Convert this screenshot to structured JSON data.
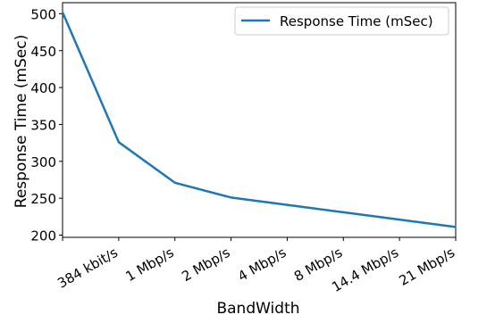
{
  "chart_data": {
    "type": "line",
    "title": "",
    "xlabel": "BandWidth",
    "ylabel": "Response Time (mSec)",
    "categories": [
      "",
      "384 kbit/s",
      "1 Mbp/s",
      "2 Mbp/s",
      "4 Mbp/s",
      "8 Mbp/s",
      "14.4 Mbp/s",
      "21 Mbp/s"
    ],
    "ylim": [
      197,
      515
    ],
    "yticks": [
      200,
      250,
      300,
      350,
      400,
      450,
      500
    ],
    "grid": false,
    "legend_position": "upper right",
    "series": [
      {
        "name": "Response Time (mSec)",
        "color": "#1f77b4",
        "values": [
          502,
          326,
          271,
          251,
          241,
          231,
          221,
          211
        ]
      }
    ]
  }
}
